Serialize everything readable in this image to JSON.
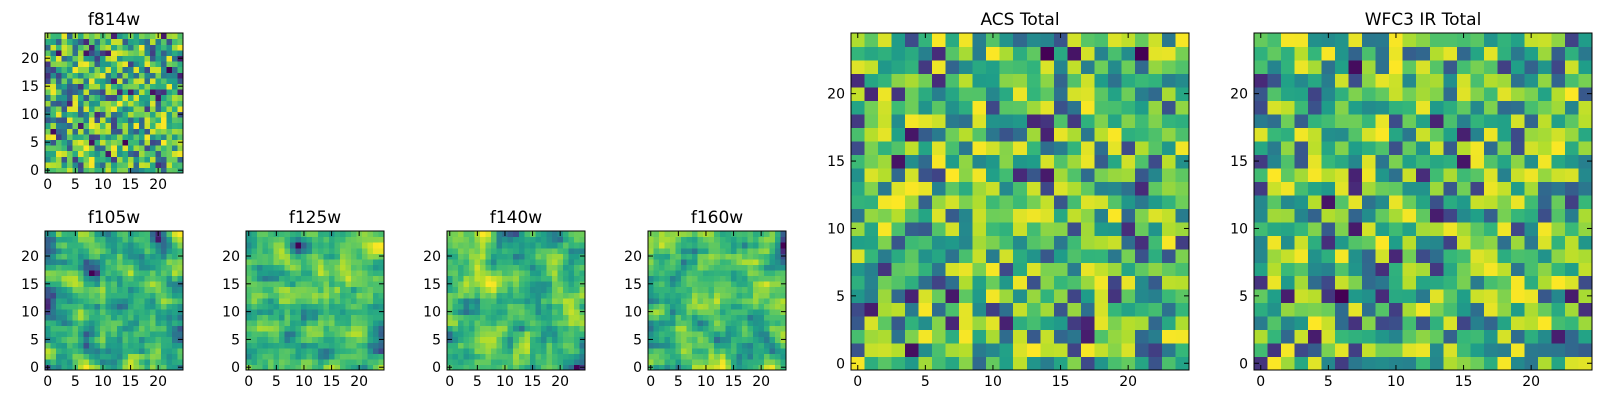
{
  "chart_data": [
    {
      "type": "heatmap",
      "title": "f814w",
      "xlim": [
        0,
        24
      ],
      "ylim": [
        0,
        24
      ],
      "xticks": [
        "0",
        "5",
        "10",
        "15",
        "20"
      ],
      "yticks": [
        "0",
        "5",
        "10",
        "15",
        "20"
      ],
      "grid": false,
      "colormap": "viridis",
      "seed": 11,
      "smooth": 0,
      "grid_size": 25
    },
    {
      "type": "heatmap",
      "title": "f105w",
      "xlim": [
        0,
        24
      ],
      "ylim": [
        0,
        24
      ],
      "xticks": [
        "0",
        "5",
        "10",
        "15",
        "20"
      ],
      "yticks": [
        "0",
        "5",
        "10",
        "15",
        "20"
      ],
      "grid": false,
      "colormap": "viridis",
      "seed": 23,
      "smooth": 1,
      "grid_size": 25
    },
    {
      "type": "heatmap",
      "title": "f125w",
      "xlim": [
        0,
        24
      ],
      "ylim": [
        0,
        24
      ],
      "xticks": [
        "0",
        "5",
        "10",
        "15",
        "20"
      ],
      "yticks": [
        "0",
        "5",
        "10",
        "15",
        "20"
      ],
      "grid": false,
      "colormap": "viridis",
      "seed": 37,
      "smooth": 1,
      "grid_size": 25
    },
    {
      "type": "heatmap",
      "title": "f140w",
      "xlim": [
        0,
        24
      ],
      "ylim": [
        0,
        24
      ],
      "xticks": [
        "0",
        "5",
        "10",
        "15",
        "20"
      ],
      "yticks": [
        "0",
        "5",
        "10",
        "15",
        "20"
      ],
      "grid": false,
      "colormap": "viridis",
      "seed": 41,
      "smooth": 1,
      "grid_size": 25
    },
    {
      "type": "heatmap",
      "title": "f160w",
      "xlim": [
        0,
        24
      ],
      "ylim": [
        0,
        24
      ],
      "xticks": [
        "0",
        "5",
        "10",
        "15",
        "20"
      ],
      "yticks": [
        "0",
        "5",
        "10",
        "15",
        "20"
      ],
      "grid": false,
      "colormap": "viridis",
      "seed": 53,
      "smooth": 1,
      "grid_size": 25
    },
    {
      "type": "heatmap",
      "title": "ACS Total",
      "xlim": [
        0,
        24
      ],
      "ylim": [
        0,
        24
      ],
      "xticks": [
        "0",
        "5",
        "10",
        "15",
        "20"
      ],
      "yticks": [
        "0",
        "5",
        "10",
        "15",
        "20"
      ],
      "grid": false,
      "colormap": "viridis",
      "seed": 67,
      "smooth": 0,
      "grid_size": 25
    },
    {
      "type": "heatmap",
      "title": "WFC3 IR Total",
      "xlim": [
        0,
        24
      ],
      "ylim": [
        0,
        24
      ],
      "xticks": [
        "0",
        "5",
        "10",
        "15",
        "20"
      ],
      "yticks": [
        "0",
        "5",
        "10",
        "15",
        "20"
      ],
      "grid": false,
      "colormap": "viridis",
      "seed": 79,
      "smooth": 0,
      "grid_size": 25
    }
  ]
}
